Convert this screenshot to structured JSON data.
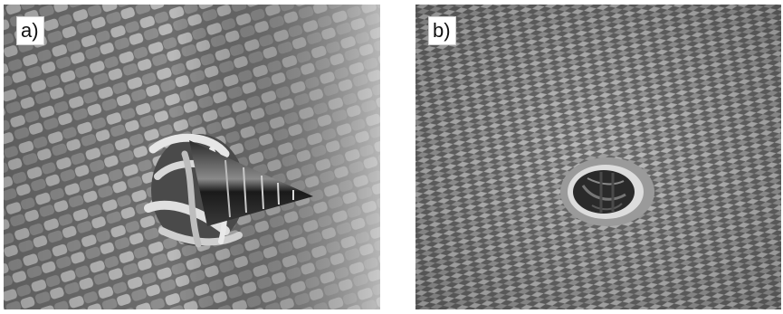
{
  "panels": [
    {
      "label": "a)"
    },
    {
      "label": "b)"
    }
  ],
  "colors": {
    "weave_light": "#cfcfcf",
    "weave_mid": "#9a9a9a",
    "weave_dark": "#5a5a5a",
    "background": "#ffffff"
  }
}
